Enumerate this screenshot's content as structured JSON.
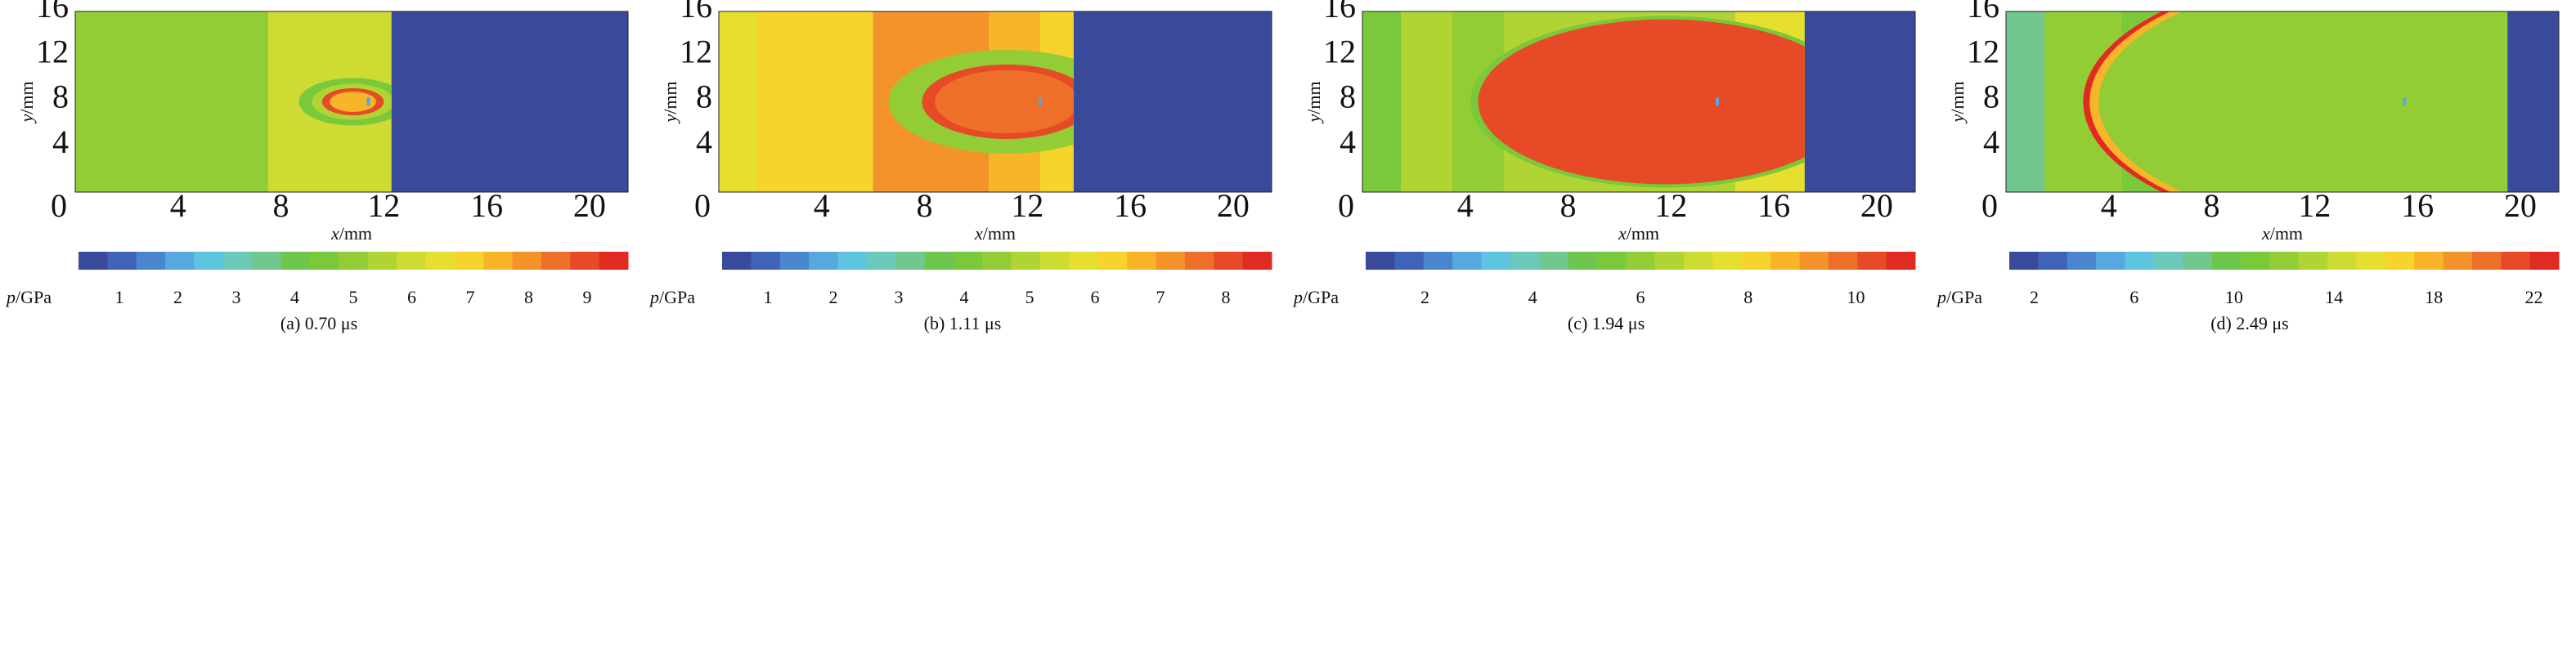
{
  "colormap": [
    "#3a4a9a",
    "#3f63b8",
    "#4a86d0",
    "#55a9df",
    "#5ec4e0",
    "#6bc9bb",
    "#72c78e",
    "#6ec64f",
    "#79c93a",
    "#92cd35",
    "#b0d433",
    "#cddb32",
    "#e7df2f",
    "#f6d42b",
    "#f8b52a",
    "#f4932a",
    "#ee6f2a",
    "#e64a27",
    "#e02a22"
  ],
  "chart_data": [
    {
      "type": "heatmap",
      "caption": "(a) 0.70 μs",
      "xlabel_var": "x",
      "xlabel_unit": "/mm",
      "ylabel_var": "y",
      "ylabel_unit": "/mm",
      "x_ticks": [
        "0",
        "4",
        "8",
        "12",
        "16",
        "20"
      ],
      "y_ticks": [
        "4",
        "8",
        "12",
        "16"
      ],
      "xlim": [
        0,
        21.5
      ],
      "ylim": [
        0,
        16
      ],
      "colorbar_var": "p",
      "colorbar_unit": "/GPa",
      "colorbar_ticks": [
        "1",
        "2",
        "3",
        "4",
        "5",
        "6",
        "7",
        "8",
        "9"
      ],
      "colorbar_range": [
        0.3,
        9.7
      ],
      "bands": [
        {
          "x0": 0,
          "x1": 7.5,
          "value": 5.0
        },
        {
          "x0": 7.5,
          "x1": 12.3,
          "value": 6.2
        },
        {
          "x0": 12.3,
          "x1": 21.5,
          "value": 0.3
        }
      ],
      "rings": [
        {
          "cx": 10.8,
          "cy": 8.0,
          "r": 2.1,
          "value": 4.3
        },
        {
          "cx": 10.8,
          "cy": 8.0,
          "r": 1.6,
          "value": 5.3
        },
        {
          "cx": 10.8,
          "cy": 8.0,
          "r": 1.2,
          "value": 8.9
        },
        {
          "cx": 10.8,
          "cy": 8.0,
          "r": 0.9,
          "value": 7.3
        }
      ],
      "clip_right": 12.3,
      "marker": {
        "x": 11.4,
        "y": 8.0
      }
    },
    {
      "type": "heatmap",
      "caption": "(b) 1.11 μs",
      "xlabel_var": "x",
      "xlabel_unit": "/mm",
      "ylabel_var": "y",
      "ylabel_unit": "/mm",
      "x_ticks": [
        "0",
        "4",
        "8",
        "12",
        "16",
        "20"
      ],
      "y_ticks": [
        "4",
        "8",
        "12",
        "16"
      ],
      "xlim": [
        0,
        21.5
      ],
      "ylim": [
        0,
        16
      ],
      "colorbar_var": "p",
      "colorbar_unit": "/GPa",
      "colorbar_ticks": [
        "1",
        "2",
        "3",
        "4",
        "5",
        "6",
        "7",
        "8"
      ],
      "colorbar_range": [
        0.3,
        8.7
      ],
      "bands": [
        {
          "x0": 0,
          "x1": 1.5,
          "value": 5.9
        },
        {
          "x0": 1.5,
          "x1": 6.0,
          "value": 6.4
        },
        {
          "x0": 6.0,
          "x1": 10.5,
          "value": 7.3
        },
        {
          "x0": 10.5,
          "x1": 12.5,
          "value": 6.9
        },
        {
          "x0": 12.5,
          "x1": 13.8,
          "value": 6.4
        },
        {
          "x0": 13.8,
          "x1": 21.5,
          "value": 0.3
        }
      ],
      "rings": [
        {
          "cx": 11.2,
          "cy": 8.0,
          "r": 4.6,
          "value": 4.3
        },
        {
          "cx": 11.2,
          "cy": 8.0,
          "r": 3.3,
          "value": 7.9
        },
        {
          "cx": 11.2,
          "cy": 8.0,
          "r": 2.8,
          "value": 7.6
        }
      ],
      "clip_right": 13.8,
      "marker": {
        "x": 12.5,
        "y": 8.0
      }
    },
    {
      "type": "heatmap",
      "caption": "(c) 1.94 μs",
      "xlabel_var": "x",
      "xlabel_unit": "/mm",
      "ylabel_var": "y",
      "ylabel_unit": "/mm",
      "x_ticks": [
        "0",
        "4",
        "8",
        "12",
        "16",
        "20"
      ],
      "y_ticks": [
        "4",
        "8",
        "12",
        "16"
      ],
      "xlim": [
        0,
        21.5
      ],
      "ylim": [
        0,
        16
      ],
      "colorbar_var": "p",
      "colorbar_unit": "/GPa",
      "colorbar_ticks": [
        "2",
        "4",
        "6",
        "8",
        "10"
      ],
      "colorbar_tick_values": [
        2,
        4,
        6,
        8,
        10
      ],
      "colorbar_range": [
        0.9,
        11.1
      ],
      "bands": [
        {
          "x0": 0,
          "x1": 1.5,
          "value": 5.7
        },
        {
          "x0": 1.5,
          "x1": 3.5,
          "value": 6.3
        },
        {
          "x0": 3.5,
          "x1": 5.5,
          "value": 5.8
        },
        {
          "x0": 5.5,
          "x1": 14.5,
          "value": 6.6
        },
        {
          "x0": 14.5,
          "x1": 17.2,
          "value": 7.8
        },
        {
          "x0": 17.2,
          "x1": 21.5,
          "value": 0.9
        }
      ],
      "rings": [
        {
          "cx": 11.8,
          "cy": 8.0,
          "r": 7.6,
          "value": 5.2
        },
        {
          "cx": 11.8,
          "cy": 8.0,
          "r": 7.3,
          "value": 10.2
        }
      ],
      "clip_right": 17.2,
      "marker": {
        "x": 13.8,
        "y": 8.0
      }
    },
    {
      "type": "heatmap",
      "caption": "(d) 2.49 μs",
      "xlabel_var": "x",
      "xlabel_unit": "/mm",
      "ylabel_var": "y",
      "ylabel_unit": "/mm",
      "x_ticks": [
        "0",
        "4",
        "8",
        "12",
        "16",
        "20"
      ],
      "y_ticks": [
        "4",
        "8",
        "12",
        "16"
      ],
      "xlim": [
        0,
        21.5
      ],
      "ylim": [
        0,
        16
      ],
      "colorbar_var": "p",
      "colorbar_unit": "/GPa",
      "colorbar_ticks": [
        "2",
        "6",
        "10",
        "14",
        "18",
        "22"
      ],
      "colorbar_tick_values": [
        2,
        6,
        10,
        14,
        18,
        22
      ],
      "colorbar_range": [
        1,
        23
      ],
      "bands": [
        {
          "x0": 0,
          "x1": 1.5,
          "value": 8.6
        },
        {
          "x0": 1.5,
          "x1": 4.5,
          "value": 11.8
        },
        {
          "x0": 4.5,
          "x1": 15.0,
          "value": 10.8
        },
        {
          "x0": 15.0,
          "x1": 17.0,
          "value": 13.4
        },
        {
          "x0": 17.0,
          "x1": 18.5,
          "value": 12.2
        },
        {
          "x0": 18.5,
          "x1": 19.5,
          "value": 9.2
        },
        {
          "x0": 19.5,
          "x1": 21.5,
          "value": 1.0
        }
      ],
      "rings": [
        {
          "cx": 15.0,
          "cy": 8.0,
          "r": 12.0,
          "value": 22.0
        },
        {
          "cx": 15.0,
          "cy": 8.0,
          "r": 11.75,
          "value": 18.0
        },
        {
          "cx": 15.0,
          "cy": 8.0,
          "r": 11.4,
          "value": 12.4
        }
      ],
      "clip_right": 19.5,
      "marker": {
        "x": 15.5,
        "y": 8.0
      }
    }
  ]
}
